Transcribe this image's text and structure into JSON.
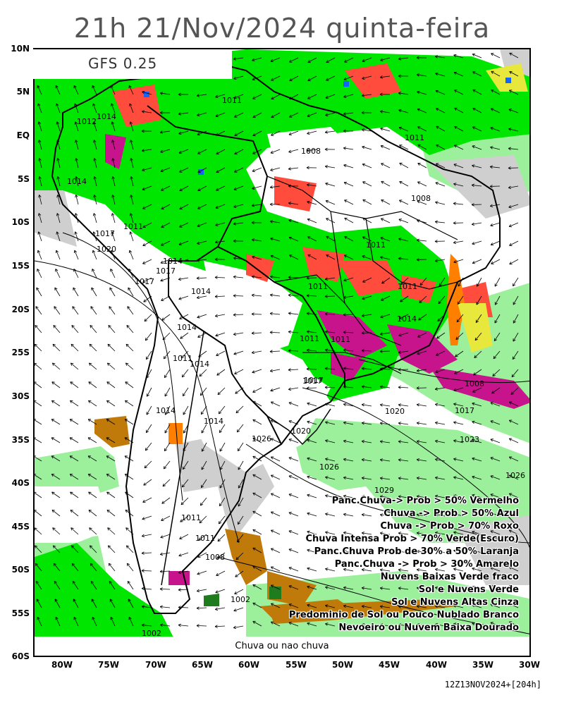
{
  "title": "21h 21/Nov/2024 quinta-feira",
  "model": "GFS 0.25",
  "footer_label": "Chuva ou nao chuva",
  "run_info": "12Z13NOV2024+[204h]",
  "lat_ticks": [
    "10N",
    "5N",
    "EQ",
    "5S",
    "10S",
    "15S",
    "20S",
    "25S",
    "30S",
    "35S",
    "40S",
    "45S",
    "50S",
    "55S",
    "60S"
  ],
  "lon_ticks": [
    "80W",
    "75W",
    "70W",
    "65W",
    "60W",
    "55W",
    "50W",
    "45W",
    "40W",
    "35W",
    "30W"
  ],
  "legend": [
    "Panc.Chuva-> Prob > 50% Vermelho",
    "Chuva -> Prob > 50% Azul",
    "Chuva -> Prob > 70% Roxo",
    "Chuva Intensa Prob > 70% Verde(Escuro)",
    "Panc.Chuva Prob de 30% a 50% Laranja",
    "Panc.Chuva -> Prob > 30% Amarelo",
    "Nuvens Baixas Verde fraco",
    "Sol e Nuvens Verde",
    "Sol e Nuvens Altas Cinza",
    "Predominio de Sol ou Pouco Nublado Branco",
    "Nevoeiro ou Nuvem Baixa Dourado"
  ],
  "isobar_labels": [
    "1012",
    "1014",
    "1011",
    "1008",
    "1011",
    "1014",
    "1008",
    "1017",
    "1011",
    "1020",
    "1014",
    "1017",
    "1017",
    "1014",
    "1011",
    "1011",
    "1011",
    "1014",
    "1011",
    "1011",
    "1014",
    "1017",
    "1020",
    "1017",
    "1014",
    "1014",
    "1014",
    "1011",
    "1008",
    "1011",
    "1011",
    "1020",
    "1023",
    "1026",
    "1026",
    "1029",
    "1026",
    "1017",
    "1008",
    "1002",
    "1002"
  ],
  "colors": {
    "green": "#00e600",
    "light_green": "#9cf09c",
    "gray": "#cfcfcf",
    "red": "#ff4c3c",
    "orange": "#ff7f00",
    "yellow": "#e8e83c",
    "purple": "#c8148c",
    "blue": "#1464ff",
    "dark_green": "#1e7b1e",
    "gold": "#c07a0a"
  }
}
